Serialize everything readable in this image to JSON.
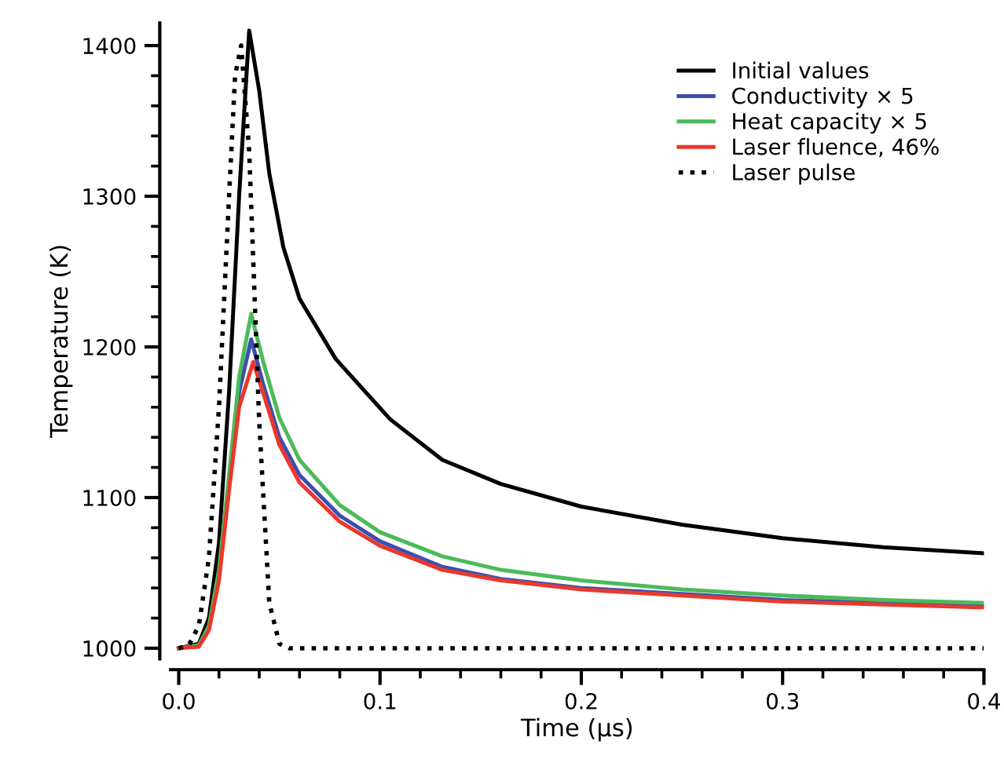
{
  "chart_data": {
    "type": "line",
    "xlabel": "Time (µs)",
    "ylabel": "Temperature (K)",
    "xlim": [
      -0.004,
      0.4
    ],
    "ylim": [
      993,
      1415
    ],
    "xticks": [
      {
        "value": 0.0,
        "label": "0.0"
      },
      {
        "value": 0.02,
        "label": null
      },
      {
        "value": 0.04,
        "label": null
      },
      {
        "value": 0.06,
        "label": null
      },
      {
        "value": 0.08,
        "label": null
      },
      0.1,
      {
        "value": 0.12,
        "label": null
      },
      {
        "value": 0.14,
        "label": null
      },
      {
        "value": 0.16,
        "label": null
      },
      {
        "value": 0.18,
        "label": null
      },
      0.2,
      {
        "value": 0.22,
        "label": null
      },
      {
        "value": 0.24,
        "label": null
      },
      {
        "value": 0.26,
        "label": null
      },
      {
        "value": 0.28,
        "label": null
      },
      0.3,
      {
        "value": 0.32,
        "label": null
      },
      {
        "value": 0.34,
        "label": null
      },
      {
        "value": 0.36,
        "label": null
      },
      {
        "value": 0.38,
        "label": null
      },
      0.4
    ],
    "yticks": [
      1000,
      {
        "value": 1020,
        "label": null
      },
      {
        "value": 1040,
        "label": null
      },
      {
        "value": 1060,
        "label": null
      },
      {
        "value": 1080,
        "label": null
      },
      1100,
      {
        "value": 1120,
        "label": null
      },
      {
        "value": 1140,
        "label": null
      },
      {
        "value": 1160,
        "label": null
      },
      {
        "value": 1180,
        "label": null
      },
      1200,
      {
        "value": 1220,
        "label": null
      },
      {
        "value": 1240,
        "label": null
      },
      {
        "value": 1260,
        "label": null
      },
      {
        "value": 1280,
        "label": null
      },
      1300,
      {
        "value": 1320,
        "label": null
      },
      {
        "value": 1340,
        "label": null
      },
      {
        "value": 1360,
        "label": null
      },
      {
        "value": 1380,
        "label": null
      },
      1400
    ],
    "grid": false,
    "legend": "top right",
    "marker": "none",
    "series": [
      {
        "name": "Initial values",
        "color": "#000000",
        "line_style": "solid",
        "x": [
          0.0,
          0.01,
          0.015,
          0.02,
          0.025,
          0.03,
          0.035,
          0.04,
          0.045,
          0.052,
          0.06,
          0.078,
          0.105,
          0.131,
          0.16,
          0.2,
          0.25,
          0.3,
          0.35,
          0.4
        ],
        "values": [
          1000,
          1003,
          1020,
          1070,
          1170,
          1300,
          1410,
          1370,
          1315,
          1266,
          1232,
          1192,
          1152,
          1125,
          1109,
          1094,
          1082,
          1073,
          1067,
          1063
        ]
      },
      {
        "name": "Conductivity × 5",
        "color": "#3a4fb0",
        "line_style": "solid",
        "x": [
          0.025,
          0.03,
          0.036,
          0.042,
          0.05,
          0.06,
          0.08,
          0.1,
          0.131,
          0.16,
          0.2,
          0.25,
          0.3,
          0.35,
          0.4
        ],
        "values": [
          1110,
          1170,
          1205,
          1175,
          1140,
          1115,
          1088,
          1071,
          1054,
          1046,
          1040,
          1036,
          1032,
          1030,
          1028
        ]
      },
      {
        "name": "Heat capacity × 5",
        "color": "#4cba5a",
        "line_style": "solid",
        "x": [
          0.0,
          0.01,
          0.015,
          0.02,
          0.025,
          0.03,
          0.036,
          0.042,
          0.05,
          0.06,
          0.08,
          0.1,
          0.131,
          0.16,
          0.2,
          0.25,
          0.3,
          0.35,
          0.4
        ],
        "values": [
          1000,
          1002,
          1015,
          1052,
          1115,
          1180,
          1222,
          1190,
          1153,
          1125,
          1095,
          1077,
          1061,
          1052,
          1045,
          1039,
          1035,
          1032,
          1030
        ]
      },
      {
        "name": "Laser fluence, 46%",
        "color": "#e8392c",
        "line_style": "solid",
        "x": [
          0.0,
          0.01,
          0.015,
          0.02,
          0.025,
          0.03,
          0.037,
          0.043,
          0.05,
          0.06,
          0.08,
          0.1,
          0.131,
          0.16,
          0.2,
          0.25,
          0.3,
          0.35,
          0.4
        ],
        "values": [
          1000,
          1001,
          1012,
          1045,
          1105,
          1160,
          1190,
          1165,
          1135,
          1110,
          1084,
          1068,
          1052,
          1045,
          1039,
          1035,
          1031,
          1029,
          1027
        ]
      },
      {
        "name": "Laser pulse",
        "color": "#000000",
        "line_style": "dotted",
        "x": [
          0.0,
          0.005,
          0.01,
          0.015,
          0.02,
          0.025,
          0.028,
          0.031,
          0.035,
          0.04,
          0.045,
          0.05,
          0.055,
          0.1,
          0.2,
          0.3,
          0.4
        ],
        "values": [
          1000,
          1002,
          1015,
          1060,
          1160,
          1300,
          1380,
          1400,
          1330,
          1150,
          1030,
          1003,
          1000,
          1000,
          1000,
          1000,
          1000
        ]
      }
    ]
  }
}
